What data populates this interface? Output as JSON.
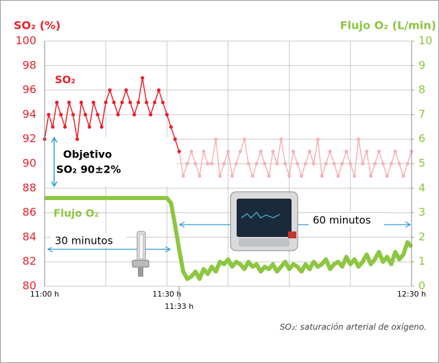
{
  "chart_data": {
    "type": "line",
    "title": "SO₂ (%)",
    "y2_title": "Flujo O₂ (L/min)",
    "x": [
      0,
      1,
      2,
      3,
      4,
      5,
      6,
      7,
      8,
      9,
      10,
      11,
      12,
      13,
      14,
      15,
      16,
      17,
      18,
      19,
      20,
      21,
      22,
      23,
      24,
      25,
      26,
      27,
      28,
      29,
      30,
      31,
      32,
      33,
      34,
      35,
      36,
      37,
      38,
      39,
      40,
      41,
      42,
      43,
      44,
      45,
      46,
      47,
      48,
      49,
      50,
      51,
      52,
      53,
      54,
      55,
      56,
      57,
      58,
      59,
      60,
      61,
      62,
      63,
      64,
      65,
      66,
      67,
      68,
      69,
      70,
      71,
      72,
      73,
      74,
      75,
      76,
      77,
      78,
      79,
      80,
      81,
      82,
      83,
      84,
      85,
      86,
      87,
      88,
      89,
      90
    ],
    "xlim": [
      0,
      90
    ],
    "xticks": [
      {
        "value": 0,
        "label": "11:00 h"
      },
      {
        "value": 15,
        "label": null
      },
      {
        "value": 30,
        "label": "11:30 h"
      },
      {
        "value": 45,
        "label": null
      },
      {
        "value": 60,
        "label": null
      },
      {
        "value": 75,
        "label": null
      },
      {
        "value": 90,
        "label": "12:30 h"
      }
    ],
    "extra_xtick": {
      "value": 33,
      "label": "11:33 h"
    },
    "ylim": [
      80,
      100
    ],
    "yticks": [
      80,
      82,
      84,
      86,
      88,
      90,
      92,
      94,
      96,
      98,
      100
    ],
    "y2lim": [
      0,
      10
    ],
    "y2ticks": [
      0,
      1,
      2,
      3,
      4,
      5,
      6,
      7,
      8,
      9,
      10
    ],
    "grid": true,
    "series": [
      {
        "name": "SO₂",
        "color": "#e8202a",
        "faded_color": "#f5b3b6",
        "fade_after": 33,
        "values": [
          92,
          94,
          93,
          95,
          94,
          93,
          95,
          94,
          92,
          95,
          94,
          93,
          95,
          94,
          93,
          95,
          96,
          95,
          94,
          95,
          96,
          95,
          94,
          95,
          97,
          95,
          94,
          95,
          96,
          95,
          94,
          93,
          92,
          91,
          89,
          90,
          91,
          90,
          89,
          91,
          90,
          90,
          92,
          89,
          90,
          91,
          89,
          90,
          91,
          92,
          90,
          89,
          90,
          91,
          90,
          89,
          91,
          90,
          92,
          90,
          89,
          91,
          90,
          89,
          90,
          91,
          90,
          92,
          89,
          90,
          91,
          90,
          89,
          90,
          91,
          90,
          89,
          92,
          90,
          91,
          89,
          90,
          91,
          90,
          89,
          90,
          91,
          90,
          89,
          90,
          91
        ]
      },
      {
        "name": "Flujo O₂",
        "color": "#8dc641",
        "axis": "y2",
        "values": [
          3.6,
          3.6,
          3.6,
          3.6,
          3.6,
          3.6,
          3.6,
          3.6,
          3.6,
          3.6,
          3.6,
          3.6,
          3.6,
          3.6,
          3.6,
          3.6,
          3.6,
          3.6,
          3.6,
          3.6,
          3.6,
          3.6,
          3.6,
          3.6,
          3.6,
          3.6,
          3.6,
          3.6,
          3.6,
          3.6,
          3.6,
          3.4,
          2.5,
          1.5,
          0.6,
          0.3,
          0.4,
          0.6,
          0.3,
          0.7,
          0.5,
          0.8,
          0.6,
          1.0,
          0.9,
          1.1,
          0.8,
          1.0,
          0.9,
          0.7,
          1.0,
          0.8,
          0.9,
          0.6,
          0.8,
          0.7,
          0.9,
          0.6,
          0.8,
          1.0,
          0.7,
          0.9,
          0.8,
          0.6,
          0.9,
          0.7,
          1.0,
          0.8,
          0.9,
          1.1,
          0.7,
          0.9,
          1.0,
          0.8,
          1.2,
          0.9,
          1.1,
          0.8,
          1.0,
          1.3,
          0.9,
          1.1,
          1.4,
          1.0,
          1.2,
          0.9,
          1.4,
          1.1,
          1.3,
          1.8,
          1.6
        ]
      }
    ],
    "annotations": {
      "target_line1": "Objetivo",
      "target_line2": "SO₂ 90±2%",
      "span_30": "30 minutos",
      "span_60": "60 minutos"
    },
    "footnote": "SO₂: saturación arterial de oxígeno."
  }
}
